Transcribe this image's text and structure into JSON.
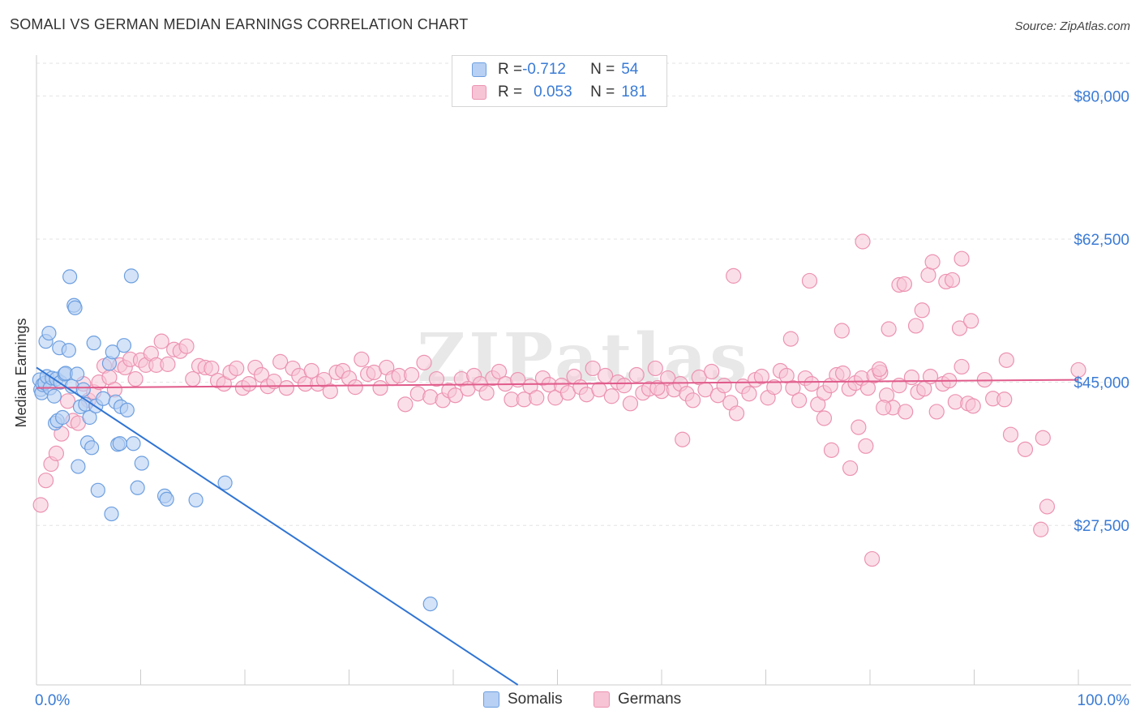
{
  "header": {
    "title": "SOMALI VS GERMAN MEDIAN EARNINGS CORRELATION CHART",
    "source": "Source: ZipAtlas.com"
  },
  "legend": {
    "somali": {
      "r_label": "R = ",
      "r_value": "-0.712",
      "n_label": "N = ",
      "n_value": "54"
    },
    "german": {
      "r_label": "R = ",
      "r_value": "0.053",
      "n_label": "N = ",
      "n_value": "181"
    }
  },
  "colors": {
    "somali_fill": "#b8d0f3",
    "somali_stroke": "#6d9fe0",
    "somali_line": "#2f74d4",
    "german_fill": "#f7c4d5",
    "german_stroke": "#ec93b2",
    "german_line": "#e05a8a",
    "axis_label": "#3a7bd5",
    "grid": "#e3e3e3"
  },
  "chart_data": {
    "type": "scatter",
    "title": "SOMALI VS GERMAN MEDIAN EARNINGS CORRELATION CHART",
    "xlabel": "",
    "ylabel": "Median Earnings",
    "xlim": [
      0,
      100
    ],
    "ylim": [
      8000,
      84000
    ],
    "x_tick_labels": [
      "0.0%",
      "100.0%"
    ],
    "y_ticks": [
      27500,
      45000,
      62500,
      80000
    ],
    "y_tick_labels": [
      "$27,500",
      "$45,000",
      "$62,500",
      "$80,000"
    ],
    "watermark": "ZIPatlas",
    "series": [
      {
        "name": "Somalis",
        "r": -0.712,
        "n": 54,
        "trend": {
          "x": [
            0,
            46.2
          ],
          "y": [
            46800,
            8000
          ]
        },
        "points": [
          [
            0.3,
            45300
          ],
          [
            0.4,
            44100
          ],
          [
            0.5,
            43700
          ],
          [
            0.6,
            44700
          ],
          [
            0.8,
            44900
          ],
          [
            0.9,
            50000
          ],
          [
            1.0,
            45700
          ],
          [
            1.2,
            51000
          ],
          [
            1.3,
            44300
          ],
          [
            1.5,
            45500
          ],
          [
            1.7,
            43300
          ],
          [
            1.8,
            40000
          ],
          [
            1.9,
            45400
          ],
          [
            2.0,
            40300
          ],
          [
            2.2,
            49200
          ],
          [
            2.3,
            45000
          ],
          [
            2.5,
            40700
          ],
          [
            2.7,
            46000
          ],
          [
            2.8,
            46100
          ],
          [
            3.1,
            48900
          ],
          [
            3.2,
            57900
          ],
          [
            3.4,
            44500
          ],
          [
            3.6,
            54400
          ],
          [
            3.7,
            54100
          ],
          [
            3.9,
            46000
          ],
          [
            4.0,
            34700
          ],
          [
            4.2,
            42000
          ],
          [
            4.5,
            44100
          ],
          [
            4.7,
            42300
          ],
          [
            4.9,
            37600
          ],
          [
            5.1,
            40700
          ],
          [
            5.3,
            37000
          ],
          [
            5.5,
            49800
          ],
          [
            5.7,
            42100
          ],
          [
            5.9,
            31800
          ],
          [
            6.4,
            43000
          ],
          [
            7.0,
            47300
          ],
          [
            7.2,
            28900
          ],
          [
            7.3,
            48700
          ],
          [
            7.6,
            42600
          ],
          [
            7.8,
            37400
          ],
          [
            8.0,
            37500
          ],
          [
            8.1,
            42000
          ],
          [
            8.4,
            49500
          ],
          [
            8.7,
            41600
          ],
          [
            9.1,
            58000
          ],
          [
            9.3,
            37500
          ],
          [
            9.7,
            32100
          ],
          [
            10.1,
            35100
          ],
          [
            12.3,
            31100
          ],
          [
            12.5,
            30700
          ],
          [
            15.3,
            30600
          ],
          [
            18.1,
            32700
          ],
          [
            37.8,
            17900
          ]
        ]
      },
      {
        "name": "Germans",
        "r": 0.053,
        "n": 181,
        "trend": {
          "x": [
            0,
            100
          ],
          "y": [
            44300,
            45300
          ]
        },
        "points": [
          [
            0.4,
            30000
          ],
          [
            0.9,
            33000
          ],
          [
            1.4,
            35000
          ],
          [
            1.9,
            36300
          ],
          [
            2.4,
            38700
          ],
          [
            3.0,
            42700
          ],
          [
            3.5,
            40300
          ],
          [
            4.0,
            40000
          ],
          [
            4.5,
            44800
          ],
          [
            5.0,
            42800
          ],
          [
            5.5,
            43800
          ],
          [
            6.0,
            45000
          ],
          [
            6.5,
            47000
          ],
          [
            7.0,
            45600
          ],
          [
            7.5,
            44100
          ],
          [
            8.0,
            47100
          ],
          [
            8.5,
            46800
          ],
          [
            9.0,
            47800
          ],
          [
            9.5,
            45400
          ],
          [
            10.0,
            47700
          ],
          [
            10.5,
            47100
          ],
          [
            11.0,
            48500
          ],
          [
            11.5,
            47100
          ],
          [
            12.0,
            50000
          ],
          [
            12.6,
            47200
          ],
          [
            13.2,
            49000
          ],
          [
            13.8,
            48800
          ],
          [
            14.4,
            49400
          ],
          [
            15.0,
            45400
          ],
          [
            15.6,
            47000
          ],
          [
            16.2,
            46800
          ],
          [
            16.8,
            46700
          ],
          [
            17.4,
            45200
          ],
          [
            18.0,
            44800
          ],
          [
            18.6,
            46200
          ],
          [
            19.2,
            46700
          ],
          [
            19.8,
            44300
          ],
          [
            20.4,
            44800
          ],
          [
            21.0,
            46800
          ],
          [
            21.6,
            45900
          ],
          [
            22.2,
            44500
          ],
          [
            22.8,
            45100
          ],
          [
            23.4,
            47500
          ],
          [
            24.0,
            44300
          ],
          [
            24.6,
            46700
          ],
          [
            25.2,
            45800
          ],
          [
            25.8,
            44800
          ],
          [
            26.4,
            46400
          ],
          [
            27.0,
            44800
          ],
          [
            27.6,
            45300
          ],
          [
            28.2,
            43900
          ],
          [
            28.8,
            46200
          ],
          [
            29.4,
            46400
          ],
          [
            30.0,
            45500
          ],
          [
            30.6,
            44400
          ],
          [
            31.2,
            47800
          ],
          [
            31.8,
            46000
          ],
          [
            32.4,
            46200
          ],
          [
            33.0,
            44300
          ],
          [
            33.6,
            46800
          ],
          [
            34.2,
            45500
          ],
          [
            34.8,
            45800
          ],
          [
            35.4,
            42300
          ],
          [
            36.0,
            45900
          ],
          [
            36.6,
            43600
          ],
          [
            37.2,
            47400
          ],
          [
            37.8,
            43200
          ],
          [
            38.4,
            45400
          ],
          [
            39.0,
            42800
          ],
          [
            39.6,
            44000
          ],
          [
            40.2,
            43400
          ],
          [
            40.8,
            45400
          ],
          [
            41.4,
            44200
          ],
          [
            42.0,
            45800
          ],
          [
            42.6,
            44800
          ],
          [
            43.2,
            43700
          ],
          [
            43.8,
            45500
          ],
          [
            44.4,
            46300
          ],
          [
            45.0,
            44800
          ],
          [
            45.6,
            42900
          ],
          [
            46.2,
            45300
          ],
          [
            46.8,
            42900
          ],
          [
            47.4,
            44500
          ],
          [
            48.0,
            43100
          ],
          [
            48.6,
            45500
          ],
          [
            49.2,
            44700
          ],
          [
            49.8,
            43100
          ],
          [
            50.4,
            44600
          ],
          [
            51.0,
            43700
          ],
          [
            51.6,
            45700
          ],
          [
            52.2,
            44400
          ],
          [
            52.8,
            43500
          ],
          [
            53.4,
            46700
          ],
          [
            54.0,
            44100
          ],
          [
            54.6,
            45800
          ],
          [
            55.2,
            43300
          ],
          [
            55.8,
            45000
          ],
          [
            56.4,
            44600
          ],
          [
            57.0,
            42400
          ],
          [
            57.6,
            45900
          ],
          [
            58.2,
            43700
          ],
          [
            58.8,
            44200
          ],
          [
            59.4,
            46700
          ],
          [
            60.0,
            43900
          ],
          [
            60.6,
            45500
          ],
          [
            61.2,
            44100
          ],
          [
            61.8,
            44800
          ],
          [
            62.4,
            43600
          ],
          [
            63.0,
            42800
          ],
          [
            63.6,
            45600
          ],
          [
            64.2,
            44100
          ],
          [
            64.8,
            46300
          ],
          [
            65.4,
            43400
          ],
          [
            66.0,
            44600
          ],
          [
            66.6,
            42500
          ],
          [
            67.2,
            41200
          ],
          [
            67.8,
            44500
          ],
          [
            68.4,
            43600
          ],
          [
            69.0,
            45300
          ],
          [
            69.6,
            45700
          ],
          [
            70.2,
            43100
          ],
          [
            70.8,
            44400
          ],
          [
            71.4,
            46400
          ],
          [
            72.0,
            45800
          ],
          [
            72.6,
            44300
          ],
          [
            73.2,
            42800
          ],
          [
            73.8,
            45500
          ],
          [
            74.4,
            44800
          ],
          [
            75.0,
            42300
          ],
          [
            75.6,
            43700
          ],
          [
            76.2,
            44600
          ],
          [
            76.8,
            45900
          ],
          [
            77.4,
            46100
          ],
          [
            78.0,
            44200
          ],
          [
            78.6,
            44900
          ],
          [
            79.2,
            45500
          ],
          [
            79.8,
            44300
          ],
          [
            80.4,
            45800
          ],
          [
            81.0,
            46200
          ],
          [
            81.6,
            43400
          ],
          [
            82.2,
            41900
          ],
          [
            82.8,
            44600
          ],
          [
            83.4,
            41400
          ],
          [
            84.0,
            45600
          ],
          [
            84.6,
            43800
          ],
          [
            85.2,
            44200
          ],
          [
            85.8,
            45700
          ],
          [
            86.4,
            41400
          ],
          [
            87.0,
            44800
          ],
          [
            87.6,
            45200
          ],
          [
            88.2,
            42600
          ],
          [
            88.8,
            46900
          ],
          [
            89.4,
            42400
          ],
          [
            89.9,
            42100
          ],
          [
            91.0,
            45300
          ],
          [
            91.8,
            43000
          ],
          [
            92.9,
            42900
          ],
          [
            93.5,
            38600
          ],
          [
            94.9,
            36800
          ],
          [
            96.6,
            38200
          ],
          [
            97.0,
            29800
          ],
          [
            96.4,
            27000
          ],
          [
            75.6,
            40600
          ],
          [
            76.3,
            36700
          ],
          [
            77.3,
            51300
          ],
          [
            78.1,
            34500
          ],
          [
            78.9,
            39500
          ],
          [
            79.6,
            37200
          ],
          [
            80.2,
            23400
          ],
          [
            81.8,
            51500
          ],
          [
            82.8,
            56900
          ],
          [
            83.3,
            57000
          ],
          [
            84.4,
            51900
          ],
          [
            85.0,
            53800
          ],
          [
            85.6,
            58100
          ],
          [
            86.0,
            59700
          ],
          [
            87.3,
            57300
          ],
          [
            87.9,
            57500
          ],
          [
            88.6,
            51600
          ],
          [
            89.7,
            52500
          ],
          [
            81.3,
            41900
          ],
          [
            93.1,
            47700
          ],
          [
            100.0,
            46500
          ],
          [
            72.4,
            50300
          ],
          [
            80.9,
            46600
          ],
          [
            59.6,
            44300
          ],
          [
            62.0,
            38000
          ],
          [
            66.9,
            58000
          ],
          [
            74.2,
            57400
          ],
          [
            79.3,
            62200
          ],
          [
            88.8,
            60100
          ]
        ]
      }
    ]
  },
  "bottom_legend": {
    "somali": "Somalis",
    "german": "Germans"
  }
}
